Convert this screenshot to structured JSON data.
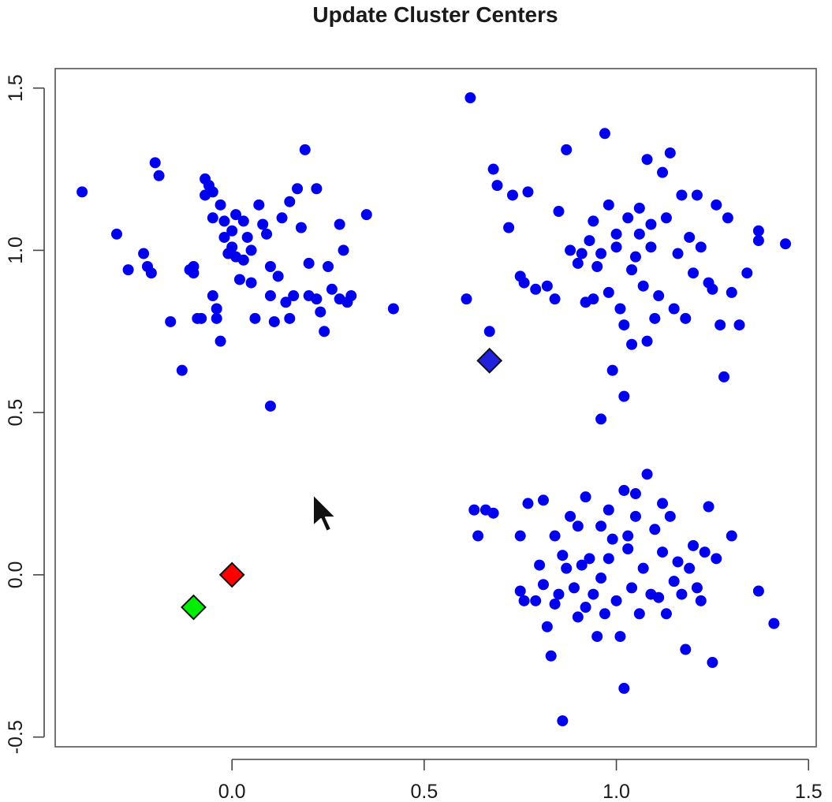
{
  "chart_data": {
    "type": "scatter",
    "title": "Update Cluster Centers",
    "xlabel": "",
    "ylabel": "",
    "xlim": [
      -0.46,
      1.52
    ],
    "ylim": [
      -0.53,
      1.56
    ],
    "x_ticks": [
      0.0,
      0.5,
      1.0,
      1.5
    ],
    "x_tick_labels": [
      "0.0",
      "0.5",
      "1.0",
      "1.5"
    ],
    "y_ticks": [
      -0.5,
      0.0,
      0.5,
      1.0,
      1.5
    ],
    "y_tick_labels": [
      "-0.5",
      "0.0",
      "0.5",
      "1.0",
      "1.5"
    ],
    "grid": false,
    "series": [
      {
        "marker": "circle",
        "color": "#0000ee",
        "points": [
          [
            -0.39,
            1.18
          ],
          [
            -0.3,
            1.05
          ],
          [
            -0.27,
            0.94
          ],
          [
            -0.23,
            0.99
          ],
          [
            -0.22,
            0.95
          ],
          [
            -0.21,
            0.93
          ],
          [
            -0.2,
            1.27
          ],
          [
            -0.19,
            1.23
          ],
          [
            -0.16,
            0.78
          ],
          [
            -0.13,
            0.63
          ],
          [
            -0.11,
            0.94
          ],
          [
            -0.1,
            0.93
          ],
          [
            -0.09,
            0.79
          ],
          [
            -0.08,
            0.79
          ],
          [
            -0.07,
            1.22
          ],
          [
            -0.07,
            1.17
          ],
          [
            -0.06,
            1.2
          ],
          [
            -0.05,
            1.18
          ],
          [
            -0.05,
            0.86
          ],
          [
            -0.04,
            0.82
          ],
          [
            -0.04,
            0.79
          ],
          [
            -0.03,
            1.14
          ],
          [
            -0.03,
            0.72
          ],
          [
            -0.02,
            1.09
          ],
          [
            -0.02,
            1.04
          ],
          [
            -0.01,
            0.99
          ],
          [
            0.0,
            1.06
          ],
          [
            0.0,
            1.01
          ],
          [
            0.01,
            1.11
          ],
          [
            0.01,
            0.98
          ],
          [
            0.02,
            0.91
          ],
          [
            0.03,
            1.09
          ],
          [
            0.03,
            0.97
          ],
          [
            0.04,
            1.04
          ],
          [
            0.05,
            1.0
          ],
          [
            0.05,
            0.9
          ],
          [
            0.06,
            0.79
          ],
          [
            0.07,
            1.14
          ],
          [
            0.08,
            1.08
          ],
          [
            0.09,
            1.05
          ],
          [
            0.1,
            0.95
          ],
          [
            0.1,
            0.86
          ],
          [
            0.11,
            0.78
          ],
          [
            0.12,
            0.92
          ],
          [
            0.13,
            1.1
          ],
          [
            0.14,
            0.84
          ],
          [
            0.15,
            0.79
          ],
          [
            0.16,
            0.86
          ],
          [
            0.17,
            1.19
          ],
          [
            0.18,
            1.07
          ],
          [
            0.19,
            1.31
          ],
          [
            0.2,
            0.96
          ],
          [
            0.2,
            0.86
          ],
          [
            0.22,
            0.85
          ],
          [
            0.23,
            0.81
          ],
          [
            0.24,
            0.75
          ],
          [
            0.25,
            0.95
          ],
          [
            0.26,
            0.88
          ],
          [
            0.28,
            0.85
          ],
          [
            0.29,
            1.0
          ],
          [
            0.3,
            0.84
          ],
          [
            0.31,
            0.86
          ],
          [
            0.1,
            0.52
          ],
          [
            -0.1,
            0.95
          ],
          [
            -0.05,
            1.1
          ],
          [
            0.15,
            1.15
          ],
          [
            0.35,
            1.11
          ],
          [
            0.28,
            1.08
          ],
          [
            0.42,
            0.82
          ],
          [
            0.22,
            1.19
          ],
          [
            0.62,
            1.47
          ],
          [
            0.61,
            0.85
          ],
          [
            0.67,
            0.75
          ],
          [
            0.68,
            1.25
          ],
          [
            0.69,
            1.2
          ],
          [
            0.72,
            1.07
          ],
          [
            0.73,
            1.17
          ],
          [
            0.75,
            0.92
          ],
          [
            0.76,
            0.9
          ],
          [
            0.77,
            1.18
          ],
          [
            0.79,
            0.88
          ],
          [
            0.82,
            0.89
          ],
          [
            0.84,
            0.85
          ],
          [
            0.85,
            1.12
          ],
          [
            0.87,
            1.31
          ],
          [
            0.88,
            1.0
          ],
          [
            0.9,
            0.96
          ],
          [
            0.92,
            0.84
          ],
          [
            0.93,
            1.03
          ],
          [
            0.94,
            0.85
          ],
          [
            0.95,
            0.95
          ],
          [
            0.96,
            0.99
          ],
          [
            0.97,
            1.36
          ],
          [
            0.98,
            1.14
          ],
          [
            0.98,
            0.87
          ],
          [
            0.99,
            0.63
          ],
          [
            1.0,
            1.05
          ],
          [
            1.01,
            0.82
          ],
          [
            1.02,
            0.77
          ],
          [
            1.02,
            0.55
          ],
          [
            1.03,
            1.1
          ],
          [
            1.04,
            0.71
          ],
          [
            1.05,
            0.98
          ],
          [
            1.06,
            1.05
          ],
          [
            1.07,
            0.89
          ],
          [
            1.08,
            1.28
          ],
          [
            1.08,
            0.72
          ],
          [
            1.09,
            1.01
          ],
          [
            1.1,
            0.79
          ],
          [
            1.11,
            0.86
          ],
          [
            1.12,
            1.24
          ],
          [
            1.13,
            1.1
          ],
          [
            1.14,
            1.3
          ],
          [
            1.15,
            0.82
          ],
          [
            1.16,
            0.99
          ],
          [
            1.17,
            1.17
          ],
          [
            1.18,
            0.79
          ],
          [
            1.19,
            1.04
          ],
          [
            1.2,
            0.93
          ],
          [
            1.21,
            1.17
          ],
          [
            1.22,
            1.01
          ],
          [
            1.24,
            0.9
          ],
          [
            1.25,
            0.88
          ],
          [
            1.26,
            1.14
          ],
          [
            1.27,
            0.77
          ],
          [
            1.28,
            0.61
          ],
          [
            1.29,
            1.1
          ],
          [
            1.3,
            0.87
          ],
          [
            1.32,
            0.77
          ],
          [
            1.34,
            0.93
          ],
          [
            1.37,
            1.06
          ],
          [
            1.37,
            1.03
          ],
          [
            1.44,
            1.02
          ],
          [
            0.96,
            0.48
          ],
          [
            1.06,
            1.13
          ],
          [
            1.09,
            1.08
          ],
          [
            0.94,
            1.09
          ],
          [
            1.0,
            1.01
          ],
          [
            0.91,
            0.99
          ],
          [
            1.04,
            0.94
          ],
          [
            0.63,
            0.2
          ],
          [
            0.64,
            0.12
          ],
          [
            0.66,
            0.2
          ],
          [
            0.68,
            0.19
          ],
          [
            0.75,
            0.12
          ],
          [
            0.75,
            -0.05
          ],
          [
            0.76,
            -0.08
          ],
          [
            0.77,
            0.22
          ],
          [
            0.79,
            -0.08
          ],
          [
            0.8,
            0.03
          ],
          [
            0.81,
            -0.03
          ],
          [
            0.81,
            0.23
          ],
          [
            0.82,
            -0.16
          ],
          [
            0.83,
            -0.25
          ],
          [
            0.84,
            0.12
          ],
          [
            0.85,
            -0.06
          ],
          [
            0.86,
            0.06
          ],
          [
            0.86,
            -0.45
          ],
          [
            0.87,
            0.02
          ],
          [
            0.88,
            0.18
          ],
          [
            0.89,
            -0.04
          ],
          [
            0.9,
            -0.13
          ],
          [
            0.91,
            0.03
          ],
          [
            0.92,
            -0.1
          ],
          [
            0.92,
            0.24
          ],
          [
            0.93,
            0.05
          ],
          [
            0.94,
            -0.06
          ],
          [
            0.95,
            -0.19
          ],
          [
            0.96,
            0.15
          ],
          [
            0.97,
            -0.12
          ],
          [
            0.98,
            0.05
          ],
          [
            0.99,
            0.11
          ],
          [
            1.0,
            -0.08
          ],
          [
            1.01,
            -0.19
          ],
          [
            1.02,
            -0.35
          ],
          [
            1.02,
            0.26
          ],
          [
            1.03,
            0.08
          ],
          [
            1.04,
            -0.04
          ],
          [
            1.05,
            0.18
          ],
          [
            1.06,
            -0.12
          ],
          [
            1.07,
            0.02
          ],
          [
            1.08,
            0.31
          ],
          [
            1.09,
            -0.06
          ],
          [
            1.1,
            0.14
          ],
          [
            1.11,
            -0.07
          ],
          [
            1.12,
            0.07
          ],
          [
            1.13,
            -0.12
          ],
          [
            1.14,
            0.18
          ],
          [
            1.15,
            -0.02
          ],
          [
            1.16,
            0.04
          ],
          [
            1.17,
            -0.06
          ],
          [
            1.18,
            -0.23
          ],
          [
            1.19,
            0.02
          ],
          [
            1.2,
            0.09
          ],
          [
            1.21,
            -0.04
          ],
          [
            1.22,
            -0.08
          ],
          [
            1.23,
            0.07
          ],
          [
            1.24,
            0.21
          ],
          [
            1.25,
            -0.27
          ],
          [
            1.26,
            0.05
          ],
          [
            1.3,
            0.12
          ],
          [
            1.37,
            -0.05
          ],
          [
            1.41,
            -0.15
          ],
          [
            1.05,
            0.25
          ],
          [
            0.98,
            0.2
          ],
          [
            0.9,
            0.15
          ],
          [
            1.12,
            0.22
          ],
          [
            0.84,
            -0.09
          ],
          [
            0.96,
            -0.01
          ],
          [
            1.03,
            0.12
          ]
        ]
      }
    ],
    "centers": [
      {
        "x": 0.67,
        "y": 0.66,
        "color": "#2222dd"
      },
      {
        "x": 0.0,
        "y": 0.0,
        "color": "#ff0000"
      },
      {
        "x": -0.1,
        "y": -0.1,
        "color": "#00ee00"
      }
    ]
  },
  "cursor": {
    "icon": "mouse-pointer-icon"
  }
}
